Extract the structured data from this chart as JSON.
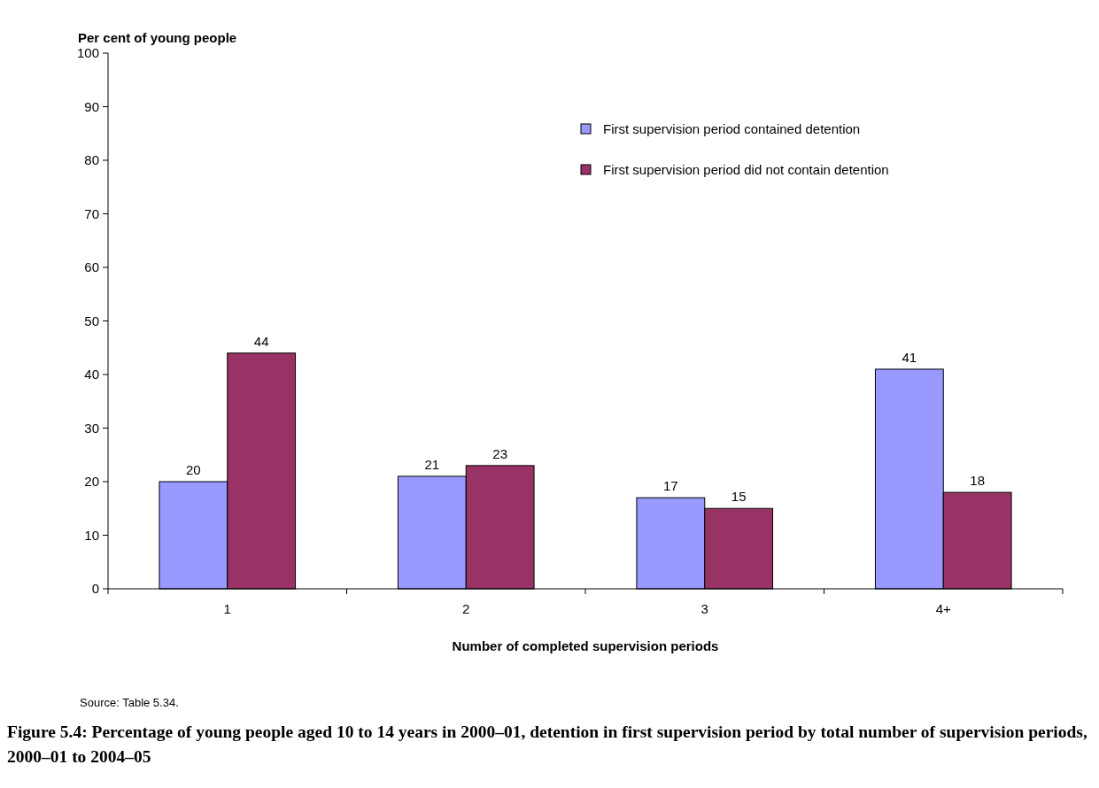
{
  "chart_data": {
    "type": "bar",
    "title": "Figure 5.4: Percentage of young people aged 10 to 14 years in 2000–01, detention in first supervision period by total number of supervision periods, 2000–01 to 2004–05",
    "xlabel": "Number of completed supervision periods",
    "ylabel": "Per cent of young people",
    "categories": [
      "1",
      "2",
      "3",
      "4+"
    ],
    "series": [
      {
        "name": "First supervision period contained detention",
        "color": "#9999ff",
        "values": [
          20,
          21,
          17,
          41
        ]
      },
      {
        "name": "First supervision period did not contain detention",
        "color": "#993366",
        "values": [
          44,
          23,
          15,
          18
        ]
      }
    ],
    "ylim": [
      0,
      100
    ],
    "yticks": [
      0,
      10,
      20,
      30,
      40,
      50,
      60,
      70,
      80,
      90,
      100
    ],
    "grid": false,
    "legend": "top right",
    "data_labels": true,
    "annotations": [
      "Source: Table 5.34."
    ]
  }
}
